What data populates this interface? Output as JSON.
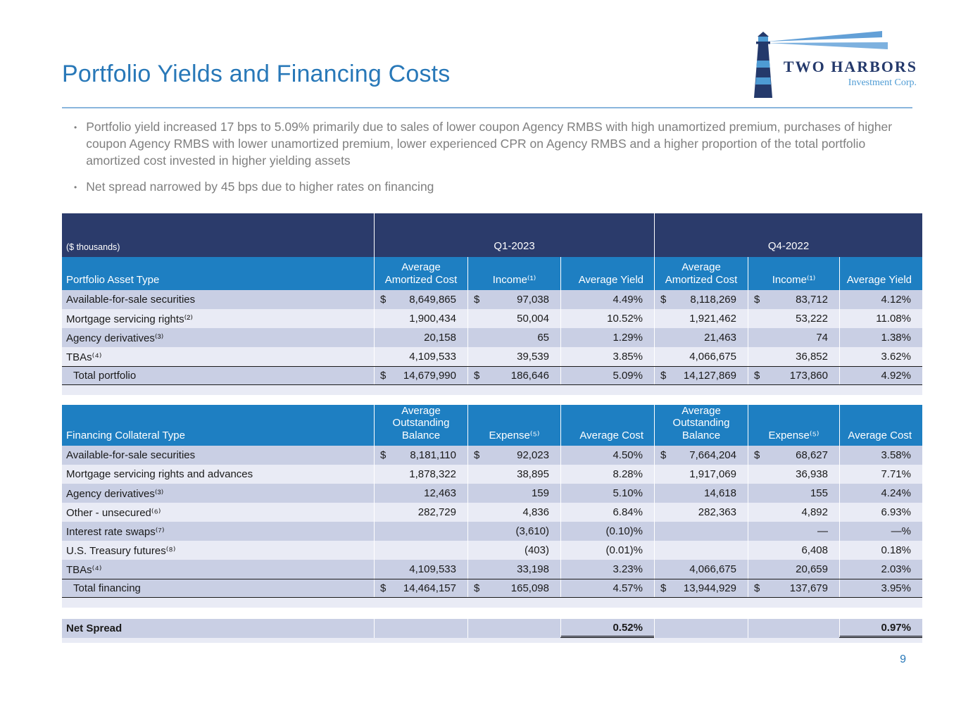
{
  "slide": {
    "title": "Portfolio Yields and Financing Costs",
    "page_number": "9"
  },
  "logo": {
    "name": "TWO HARBORS",
    "subtitle": "Investment Corp."
  },
  "bullets": [
    "Portfolio yield increased 17 bps to 5.09% primarily due to sales of lower coupon Agency RMBS with high unamortized premium, purchases of higher coupon Agency RMBS with lower unamortized premium, lower experienced CPR on Agency RMBS and a higher proportion of the total portfolio amortized cost invested in higher yielding assets",
    "Net spread narrowed by 45 bps due to higher rates on financing"
  ],
  "table_header": {
    "units": "($ thousands)",
    "period1": "Q1-2023",
    "period2": "Q4-2022"
  },
  "portfolio_table": {
    "label_header": "Portfolio Asset Type",
    "col_headers": [
      "Average Amortized Cost",
      "Income⁽¹⁾",
      "Average Yield",
      "Average Amortized Cost",
      "Income⁽¹⁾",
      "Average Yield"
    ],
    "rows": [
      {
        "name": "row-available-for-sale-securities",
        "label": "Available-for-sale securities",
        "cells": [
          {
            "d": "$",
            "v": "8,649,865"
          },
          {
            "d": "$",
            "v": "97,038"
          },
          {
            "v": "4.49%"
          },
          {
            "d": "$",
            "v": "8,118,269"
          },
          {
            "d": "$",
            "v": "83,712"
          },
          {
            "v": "4.12%"
          }
        ]
      },
      {
        "name": "row-mortgage-servicing-rights",
        "label": "Mortgage servicing rights⁽²⁾",
        "cells": [
          {
            "v": "1,900,434"
          },
          {
            "v": "50,004"
          },
          {
            "v": "10.52%"
          },
          {
            "v": "1,921,462"
          },
          {
            "v": "53,222"
          },
          {
            "v": "11.08%"
          }
        ]
      },
      {
        "name": "row-agency-derivatives",
        "label": "Agency derivatives⁽³⁾",
        "cells": [
          {
            "v": "20,158"
          },
          {
            "v": "65"
          },
          {
            "v": "1.29%"
          },
          {
            "v": "21,463"
          },
          {
            "v": "74"
          },
          {
            "v": "1.38%"
          }
        ]
      },
      {
        "name": "row-tbas",
        "label": "TBAs⁽⁴⁾",
        "cells": [
          {
            "v": "4,109,533"
          },
          {
            "v": "39,539"
          },
          {
            "v": "3.85%"
          },
          {
            "v": "4,066,675"
          },
          {
            "v": "36,852"
          },
          {
            "v": "3.62%"
          }
        ]
      }
    ],
    "total": {
      "name": "row-total-portfolio",
      "label": "Total portfolio",
      "cells": [
        {
          "d": "$",
          "v": "14,679,990"
        },
        {
          "d": "$",
          "v": "186,646"
        },
        {
          "v": "5.09%"
        },
        {
          "d": "$",
          "v": "14,127,869"
        },
        {
          "d": "$",
          "v": "173,860"
        },
        {
          "v": "4.92%"
        }
      ]
    }
  },
  "financing_table": {
    "label_header": "Financing Collateral Type",
    "col_headers": [
      "Average Outstanding Balance",
      "Expense⁽⁵⁾",
      "Average Cost",
      "Average Outstanding Balance",
      "Expense⁽⁵⁾",
      "Average Cost"
    ],
    "rows": [
      {
        "name": "row-available-for-sale-securities",
        "label": "Available-for-sale securities",
        "cells": [
          {
            "d": "$",
            "v": "8,181,110"
          },
          {
            "d": "$",
            "v": "92,023"
          },
          {
            "v": "4.50%"
          },
          {
            "d": "$",
            "v": "7,664,204"
          },
          {
            "d": "$",
            "v": "68,627"
          },
          {
            "v": "3.58%"
          }
        ]
      },
      {
        "name": "row-mortgage-servicing-rights-and-advances",
        "label": "Mortgage servicing rights and advances",
        "cells": [
          {
            "v": "1,878,322"
          },
          {
            "v": "38,895"
          },
          {
            "v": "8.28%"
          },
          {
            "v": "1,917,069"
          },
          {
            "v": "36,938"
          },
          {
            "v": "7.71%"
          }
        ]
      },
      {
        "name": "row-agency-derivatives",
        "label": "Agency derivatives⁽³⁾",
        "cells": [
          {
            "v": "12,463"
          },
          {
            "v": "159"
          },
          {
            "v": "5.10%"
          },
          {
            "v": "14,618"
          },
          {
            "v": "155"
          },
          {
            "v": "4.24%"
          }
        ]
      },
      {
        "name": "row-other-unsecured",
        "label": "Other - unsecured⁽⁶⁾",
        "cells": [
          {
            "v": "282,729"
          },
          {
            "v": "4,836"
          },
          {
            "v": "6.84%"
          },
          {
            "v": "282,363"
          },
          {
            "v": "4,892"
          },
          {
            "v": "6.93%"
          }
        ]
      },
      {
        "name": "row-interest-rate-swaps",
        "label": "Interest rate swaps⁽⁷⁾",
        "cells": [
          {
            "v": ""
          },
          {
            "v": "(3,610)"
          },
          {
            "v": "(0.10)%"
          },
          {
            "v": ""
          },
          {
            "v": "—"
          },
          {
            "v": "—%"
          }
        ]
      },
      {
        "name": "row-us-treasury-futures",
        "label": "U.S. Treasury futures⁽⁸⁾",
        "cells": [
          {
            "v": ""
          },
          {
            "v": "(403)"
          },
          {
            "v": "(0.01)%"
          },
          {
            "v": ""
          },
          {
            "v": "6,408"
          },
          {
            "v": "0.18%"
          }
        ]
      },
      {
        "name": "row-tbas",
        "label": "TBAs⁽⁴⁾",
        "cells": [
          {
            "v": "4,109,533"
          },
          {
            "v": "33,198"
          },
          {
            "v": "3.23%"
          },
          {
            "v": "4,066,675"
          },
          {
            "v": "20,659"
          },
          {
            "v": "2.03%"
          }
        ]
      }
    ],
    "total": {
      "name": "row-total-financing",
      "label": "Total financing",
      "cells": [
        {
          "d": "$",
          "v": "14,464,157"
        },
        {
          "d": "$",
          "v": "165,098"
        },
        {
          "v": "4.57%"
        },
        {
          "d": "$",
          "v": "13,944,929"
        },
        {
          "d": "$",
          "v": "137,679"
        },
        {
          "v": "3.95%"
        }
      ]
    }
  },
  "net_spread": {
    "label": "Net Spread",
    "q1": "0.52%",
    "q4": "0.97%"
  },
  "colors": {
    "navy_header": "#2B3B6B",
    "blue_header": "#1E7FC2",
    "row_dark": "#C9CFE4",
    "row_light": "#E9EBF5",
    "title_blue": "#2878B8",
    "logo_navy": "#24396B",
    "logo_light_blue": "#4E9BD4"
  }
}
